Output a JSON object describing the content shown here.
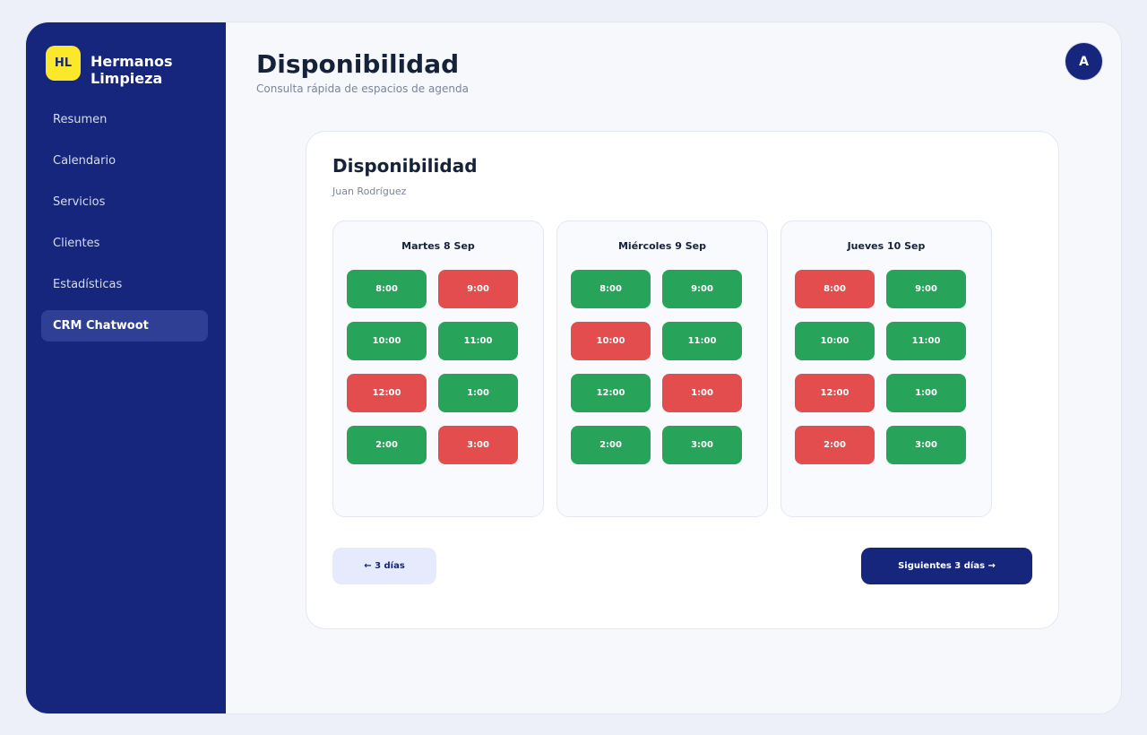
{
  "brand": {
    "logo_text": "HL",
    "name": "Hermanos Limpieza"
  },
  "sidebar": {
    "items": [
      {
        "label": "Resumen"
      },
      {
        "label": "Calendario"
      },
      {
        "label": "Servicios"
      },
      {
        "label": "Clientes"
      },
      {
        "label": "Estadísticas"
      },
      {
        "label": "CRM Chatwoot",
        "active": true
      }
    ]
  },
  "header": {
    "title": "Disponibilidad",
    "subtitle": "Consulta rápida de espacios de agenda",
    "avatar_initial": "A"
  },
  "card": {
    "title": "Disponibilidad",
    "subtitle": "Juan Rodríguez",
    "days": [
      {
        "label": "Martes 8 Sep",
        "slots": [
          {
            "time": "8:00",
            "status": "free"
          },
          {
            "time": "9:00",
            "status": "busy"
          },
          {
            "time": "10:00",
            "status": "free"
          },
          {
            "time": "11:00",
            "status": "free"
          },
          {
            "time": "12:00",
            "status": "busy"
          },
          {
            "time": "1:00",
            "status": "free"
          },
          {
            "time": "2:00",
            "status": "free"
          },
          {
            "time": "3:00",
            "status": "busy"
          }
        ]
      },
      {
        "label": "Miércoles 9 Sep",
        "slots": [
          {
            "time": "8:00",
            "status": "free"
          },
          {
            "time": "9:00",
            "status": "free"
          },
          {
            "time": "10:00",
            "status": "busy"
          },
          {
            "time": "11:00",
            "status": "free"
          },
          {
            "time": "12:00",
            "status": "free"
          },
          {
            "time": "1:00",
            "status": "busy"
          },
          {
            "time": "2:00",
            "status": "free"
          },
          {
            "time": "3:00",
            "status": "free"
          }
        ]
      },
      {
        "label": "Jueves 10 Sep",
        "slots": [
          {
            "time": "8:00",
            "status": "busy"
          },
          {
            "time": "9:00",
            "status": "free"
          },
          {
            "time": "10:00",
            "status": "free"
          },
          {
            "time": "11:00",
            "status": "free"
          },
          {
            "time": "12:00",
            "status": "busy"
          },
          {
            "time": "1:00",
            "status": "free"
          },
          {
            "time": "2:00",
            "status": "busy"
          },
          {
            "time": "3:00",
            "status": "free"
          }
        ]
      }
    ],
    "prev_label": "← 3 días",
    "next_label": "Siguientes 3 días →"
  },
  "colors": {
    "sidebar": "#15267c",
    "logo": "#fbe82b",
    "slot_free": "#27a35a",
    "slot_busy": "#e34d4d"
  }
}
